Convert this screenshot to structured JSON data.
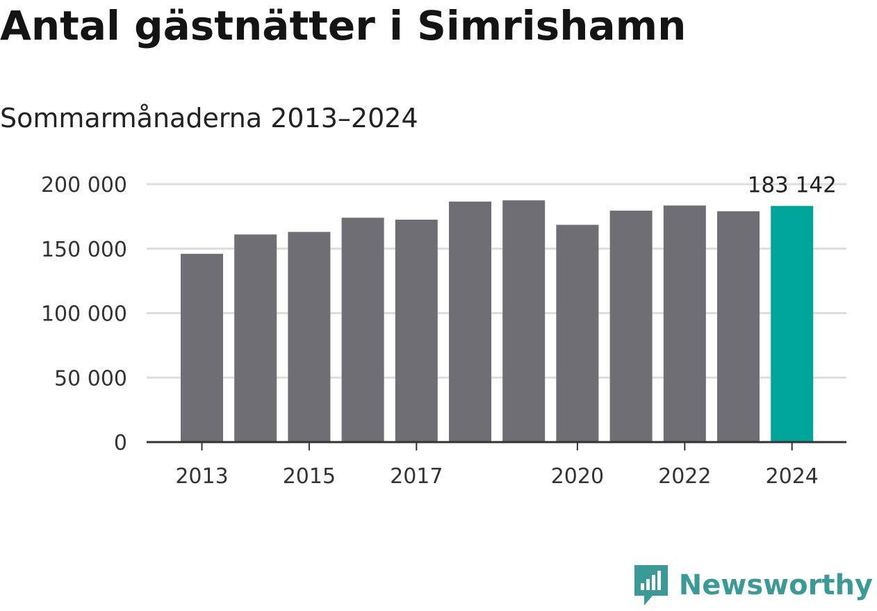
{
  "chart_data": {
    "type": "bar",
    "title": "Antal gästnätter i Simrishamn",
    "subtitle": "Sommarmånaderna 2013–2024",
    "categories": [
      "2013",
      "2014",
      "2015",
      "2016",
      "2017",
      "2018",
      "2019",
      "2020",
      "2021",
      "2022",
      "2023",
      "2024"
    ],
    "values": [
      146000,
      161000,
      163000,
      174000,
      172500,
      186500,
      187500,
      168500,
      179500,
      183500,
      179000,
      183142
    ],
    "x_tick_labels": [
      "2013",
      "",
      "2015",
      "",
      "2017",
      "",
      "",
      "2020",
      "",
      "2022",
      "",
      "2024"
    ],
    "y_ticks": [
      0,
      50000,
      100000,
      150000,
      200000
    ],
    "y_tick_labels": [
      "0",
      "50 000",
      "100 000",
      "150 000",
      "200 000"
    ],
    "ylim": [
      0,
      200000
    ],
    "highlight_index": 11,
    "highlight_label": "183 142",
    "grid": true,
    "bar_color": "#6f6e74",
    "highlight_color": "#00a59a",
    "grid_color": "#dddddd",
    "axis_color": "#333333"
  },
  "logo": {
    "text": "Newsworthy",
    "color": "#3a9a96",
    "icon": "newsworthy-logo-icon"
  }
}
